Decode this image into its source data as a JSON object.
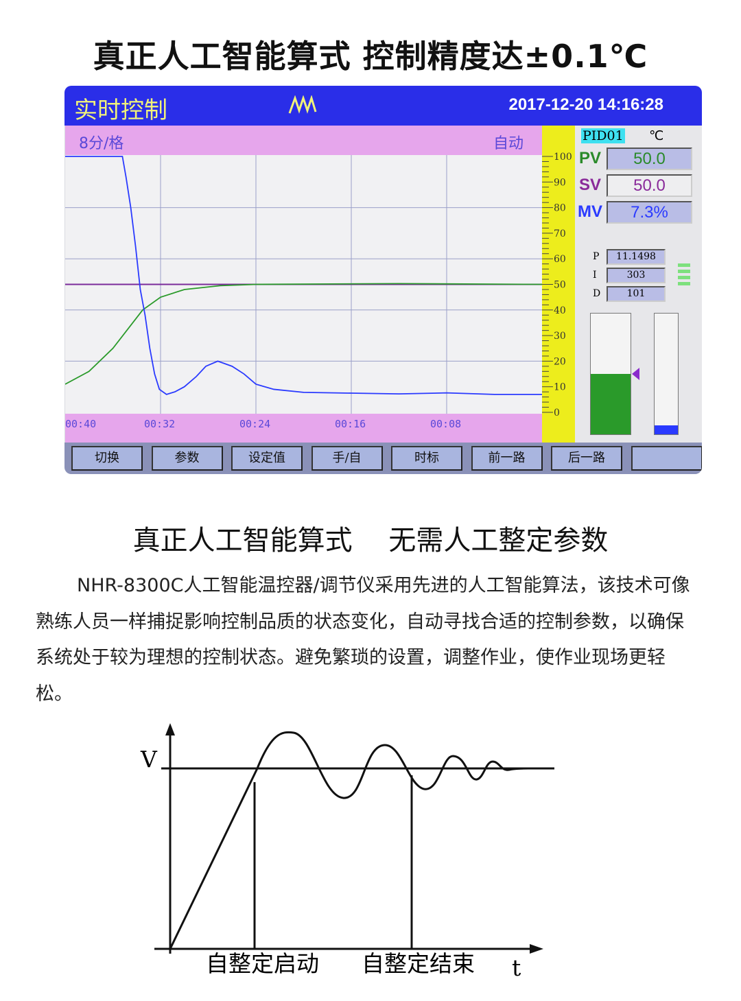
{
  "headline": "真正人工智能算式  控制精度达±0.1℃",
  "screen": {
    "title": "实时控制",
    "logo_icon": "wave-logo-icon",
    "datetime": "2017-12-20 14:16:28",
    "time_scale": "8分/格",
    "mode": "自动",
    "time_labels": [
      "00:40",
      "00:32",
      "00:24",
      "00:16",
      "00:08"
    ],
    "y_ticks": [
      "100",
      "90",
      "80",
      "70",
      "60",
      "50",
      "40",
      "30",
      "20",
      "10",
      "0"
    ],
    "loop": "PID01",
    "unit": "℃",
    "pv": {
      "label": "PV",
      "value": "50.0"
    },
    "sv": {
      "label": "SV",
      "value": "50.0"
    },
    "mv": {
      "label": "MV",
      "value": "7.3%"
    },
    "pid": {
      "p_label": "P",
      "p": "11.1498",
      "i_label": "I",
      "i": "303",
      "d_label": "D",
      "d": "101"
    },
    "pv_gauge_percent": 50,
    "mv_gauge_percent": 7.3,
    "trend": {
      "x_unit": "minutes ago",
      "y_range": [
        0,
        100
      ],
      "x_range": [
        40,
        0
      ],
      "setpoint": 50,
      "pv_color": "#2a9a2a",
      "mv_color": "#2a3aff",
      "sv_color": "#7a2a9a",
      "pv": [
        [
          40,
          11
        ],
        [
          38,
          16
        ],
        [
          36,
          25
        ],
        [
          34.5,
          34
        ],
        [
          33.5,
          40
        ],
        [
          32,
          45
        ],
        [
          30,
          48
        ],
        [
          27,
          49.5
        ],
        [
          24,
          50
        ],
        [
          12,
          50.3
        ],
        [
          0,
          50
        ]
      ],
      "mv": [
        [
          40,
          100
        ],
        [
          35.2,
          100
        ],
        [
          34.9,
          92
        ],
        [
          34.5,
          80
        ],
        [
          34.1,
          65
        ],
        [
          33.7,
          48
        ],
        [
          33.3,
          38
        ],
        [
          32.9,
          25
        ],
        [
          32.5,
          15
        ],
        [
          32.1,
          9
        ],
        [
          31.5,
          7
        ],
        [
          30.8,
          8
        ],
        [
          30,
          10
        ],
        [
          29,
          14
        ],
        [
          28.2,
          18
        ],
        [
          27.2,
          20
        ],
        [
          26,
          18
        ],
        [
          25,
          15
        ],
        [
          24,
          11
        ],
        [
          22.5,
          9
        ],
        [
          20,
          7.8
        ],
        [
          16,
          7.5
        ],
        [
          12,
          7.2
        ],
        [
          8,
          7.6
        ],
        [
          4,
          7
        ],
        [
          0,
          7
        ]
      ]
    },
    "buttons": [
      "切换",
      "参数",
      "设定值",
      "手/自",
      "时标",
      "前一路",
      "后一路",
      ""
    ]
  },
  "subheadline": "真正人工智能算式　 无需人工整定参数",
  "paragraph": "NHR-8300C人工智能温控器/调节仪采用先进的人工智能算法，该技术可像熟练人员一样捕捉影响控制品质的状态变化，自动寻找合适的控制参数，以确保系统处于较为理想的控制状态。避免繁琐的设置，调整作业，使作业现场更轻松。",
  "diagram": {
    "y_label": "V",
    "x_label": "t",
    "start_label": "自整定启动",
    "end_label": "自整定结束"
  }
}
